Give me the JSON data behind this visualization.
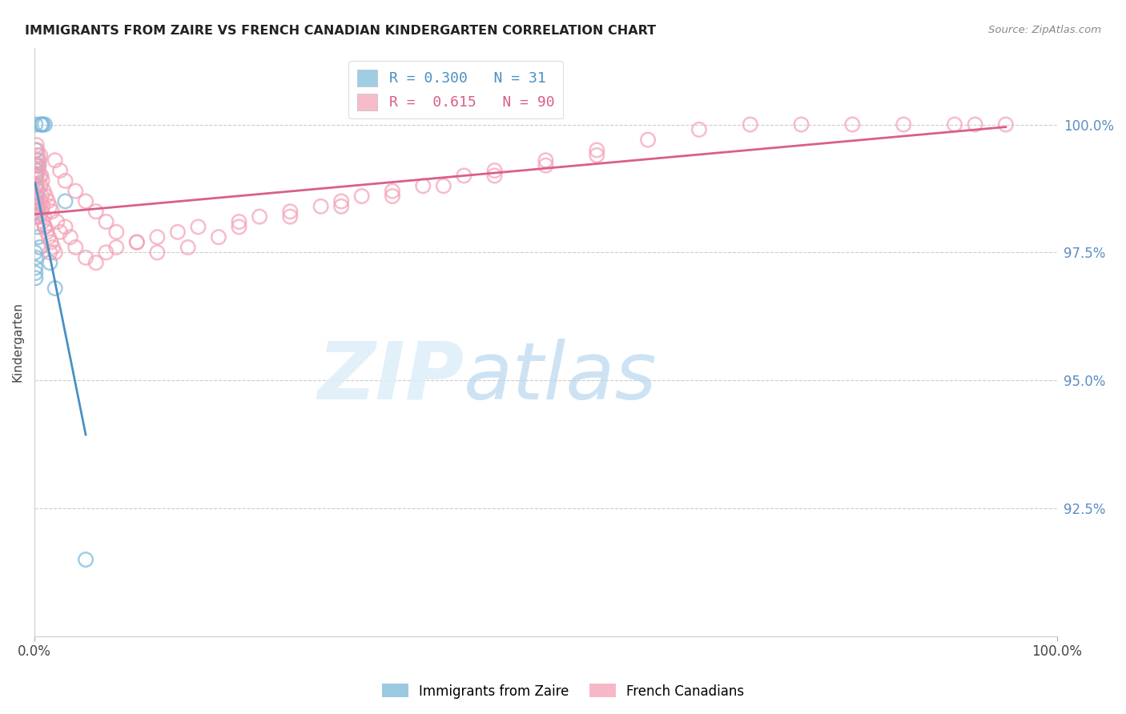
{
  "title": "IMMIGRANTS FROM ZAIRE VS FRENCH CANADIAN KINDERGARTEN CORRELATION CHART",
  "source": "Source: ZipAtlas.com",
  "ylabel": "Kindergarten",
  "xlim": [
    0.0,
    100.0
  ],
  "ylim": [
    90.0,
    101.5
  ],
  "blue_label": "Immigrants from Zaire",
  "pink_label": "French Canadians",
  "blue_R": 0.3,
  "blue_N": 31,
  "pink_R": 0.615,
  "pink_N": 90,
  "blue_color": "#7ab8d9",
  "pink_color": "#f4a0b5",
  "blue_line_color": "#4a90c4",
  "pink_line_color": "#d95f8a",
  "ytick_positions": [
    92.5,
    95.0,
    97.5,
    100.0
  ],
  "ytick_labels": [
    "92.5%",
    "95.0%",
    "97.5%",
    "100.0%"
  ],
  "ytick_color": "#5b8ec4",
  "blue_x": [
    0.05,
    0.08,
    0.1,
    0.1,
    0.1,
    0.12,
    0.12,
    0.13,
    0.14,
    0.15,
    0.15,
    0.18,
    0.2,
    0.22,
    0.25,
    0.28,
    0.3,
    0.35,
    0.4,
    0.5,
    0.6,
    0.7,
    0.8,
    1.0,
    1.5,
    2.0,
    3.0,
    5.0,
    0.08,
    0.09,
    0.11
  ],
  "blue_y": [
    97.5,
    97.2,
    100.0,
    99.0,
    98.5,
    97.4,
    98.3,
    99.2,
    98.8,
    98.6,
    99.1,
    98.2,
    99.0,
    98.4,
    99.3,
    98.0,
    98.7,
    97.8,
    99.2,
    97.6,
    100.0,
    100.0,
    100.0,
    100.0,
    97.3,
    96.8,
    98.5,
    91.5,
    97.1,
    97.0,
    99.5
  ],
  "pink_x": [
    0.1,
    0.15,
    0.2,
    0.25,
    0.3,
    0.35,
    0.4,
    0.45,
    0.5,
    0.55,
    0.6,
    0.65,
    0.7,
    0.75,
    0.8,
    0.9,
    1.0,
    1.1,
    1.2,
    1.3,
    1.4,
    1.5,
    1.6,
    1.7,
    1.8,
    2.0,
    2.2,
    2.5,
    3.0,
    3.5,
    4.0,
    5.0,
    6.0,
    7.0,
    8.0,
    10.0,
    12.0,
    14.0,
    16.0,
    20.0,
    22.0,
    25.0,
    28.0,
    30.0,
    32.0,
    35.0,
    38.0,
    42.0,
    45.0,
    50.0,
    55.0,
    60.0,
    65.0,
    70.0,
    75.0,
    80.0,
    85.0,
    90.0,
    92.0,
    95.0,
    0.2,
    0.3,
    0.4,
    0.5,
    0.6,
    0.7,
    0.8,
    0.9,
    1.0,
    1.5,
    2.0,
    2.5,
    3.0,
    4.0,
    5.0,
    6.0,
    7.0,
    8.0,
    10.0,
    12.0,
    15.0,
    18.0,
    20.0,
    25.0,
    30.0,
    35.0,
    40.0,
    45.0,
    50.0,
    55.0
  ],
  "pink_y": [
    99.2,
    99.0,
    98.8,
    99.5,
    98.6,
    99.1,
    98.4,
    99.3,
    98.2,
    99.4,
    98.5,
    99.0,
    98.3,
    98.9,
    98.1,
    98.7,
    98.0,
    98.6,
    97.9,
    98.5,
    97.8,
    98.4,
    97.7,
    98.3,
    97.6,
    97.5,
    98.1,
    97.9,
    98.0,
    97.8,
    97.6,
    97.4,
    97.3,
    97.5,
    97.6,
    97.7,
    97.8,
    97.9,
    98.0,
    98.1,
    98.2,
    98.3,
    98.4,
    98.5,
    98.6,
    98.7,
    98.8,
    99.0,
    99.1,
    99.3,
    99.5,
    99.7,
    99.9,
    100.0,
    100.0,
    100.0,
    100.0,
    100.0,
    100.0,
    100.0,
    99.6,
    99.4,
    99.2,
    99.0,
    98.8,
    98.6,
    98.4,
    98.2,
    98.0,
    97.5,
    99.3,
    99.1,
    98.9,
    98.7,
    98.5,
    98.3,
    98.1,
    97.9,
    97.7,
    97.5,
    97.6,
    97.8,
    98.0,
    98.2,
    98.4,
    98.6,
    98.8,
    99.0,
    99.2,
    99.4
  ]
}
